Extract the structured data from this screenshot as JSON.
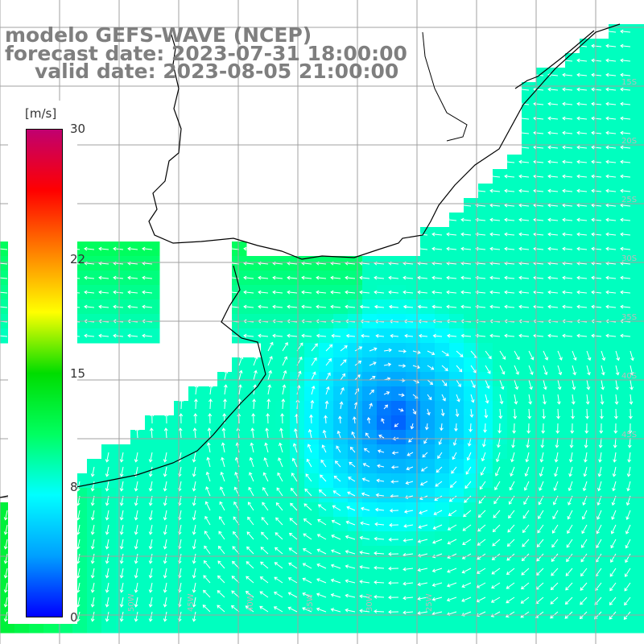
{
  "title": {
    "line1": "modelo GEFS-WAVE (NCEP)",
    "line2": "forecast date: 2023-07-31 18:00:00",
    "line3": "valid date: 2023-08-05 21:00:00"
  },
  "colorbar": {
    "unit": "[m/s]",
    "ticks": [
      "30",
      "22",
      "15",
      "8",
      "0"
    ],
    "tick_values": [
      30,
      22,
      15,
      8,
      0
    ],
    "range": [
      0,
      30
    ],
    "colors": [
      "#0000ff",
      "#00a0ff",
      "#00ffff",
      "#00ff60",
      "#00dd00",
      "#ffff00",
      "#ff8000",
      "#ff0000",
      "#c00070"
    ]
  },
  "grid_labels": {
    "right": [
      "15S",
      "20S",
      "25S",
      "30S",
      "35S",
      "40S",
      "45S"
    ],
    "bottom": [
      "60W",
      "55W",
      "50W",
      "45W",
      "40W",
      "35W",
      "30W",
      "25W"
    ]
  },
  "colors": {
    "land": "#ffffff",
    "grid": "#a0a0a0",
    "coast": "#000000",
    "arrows": "#ffffff"
  }
}
